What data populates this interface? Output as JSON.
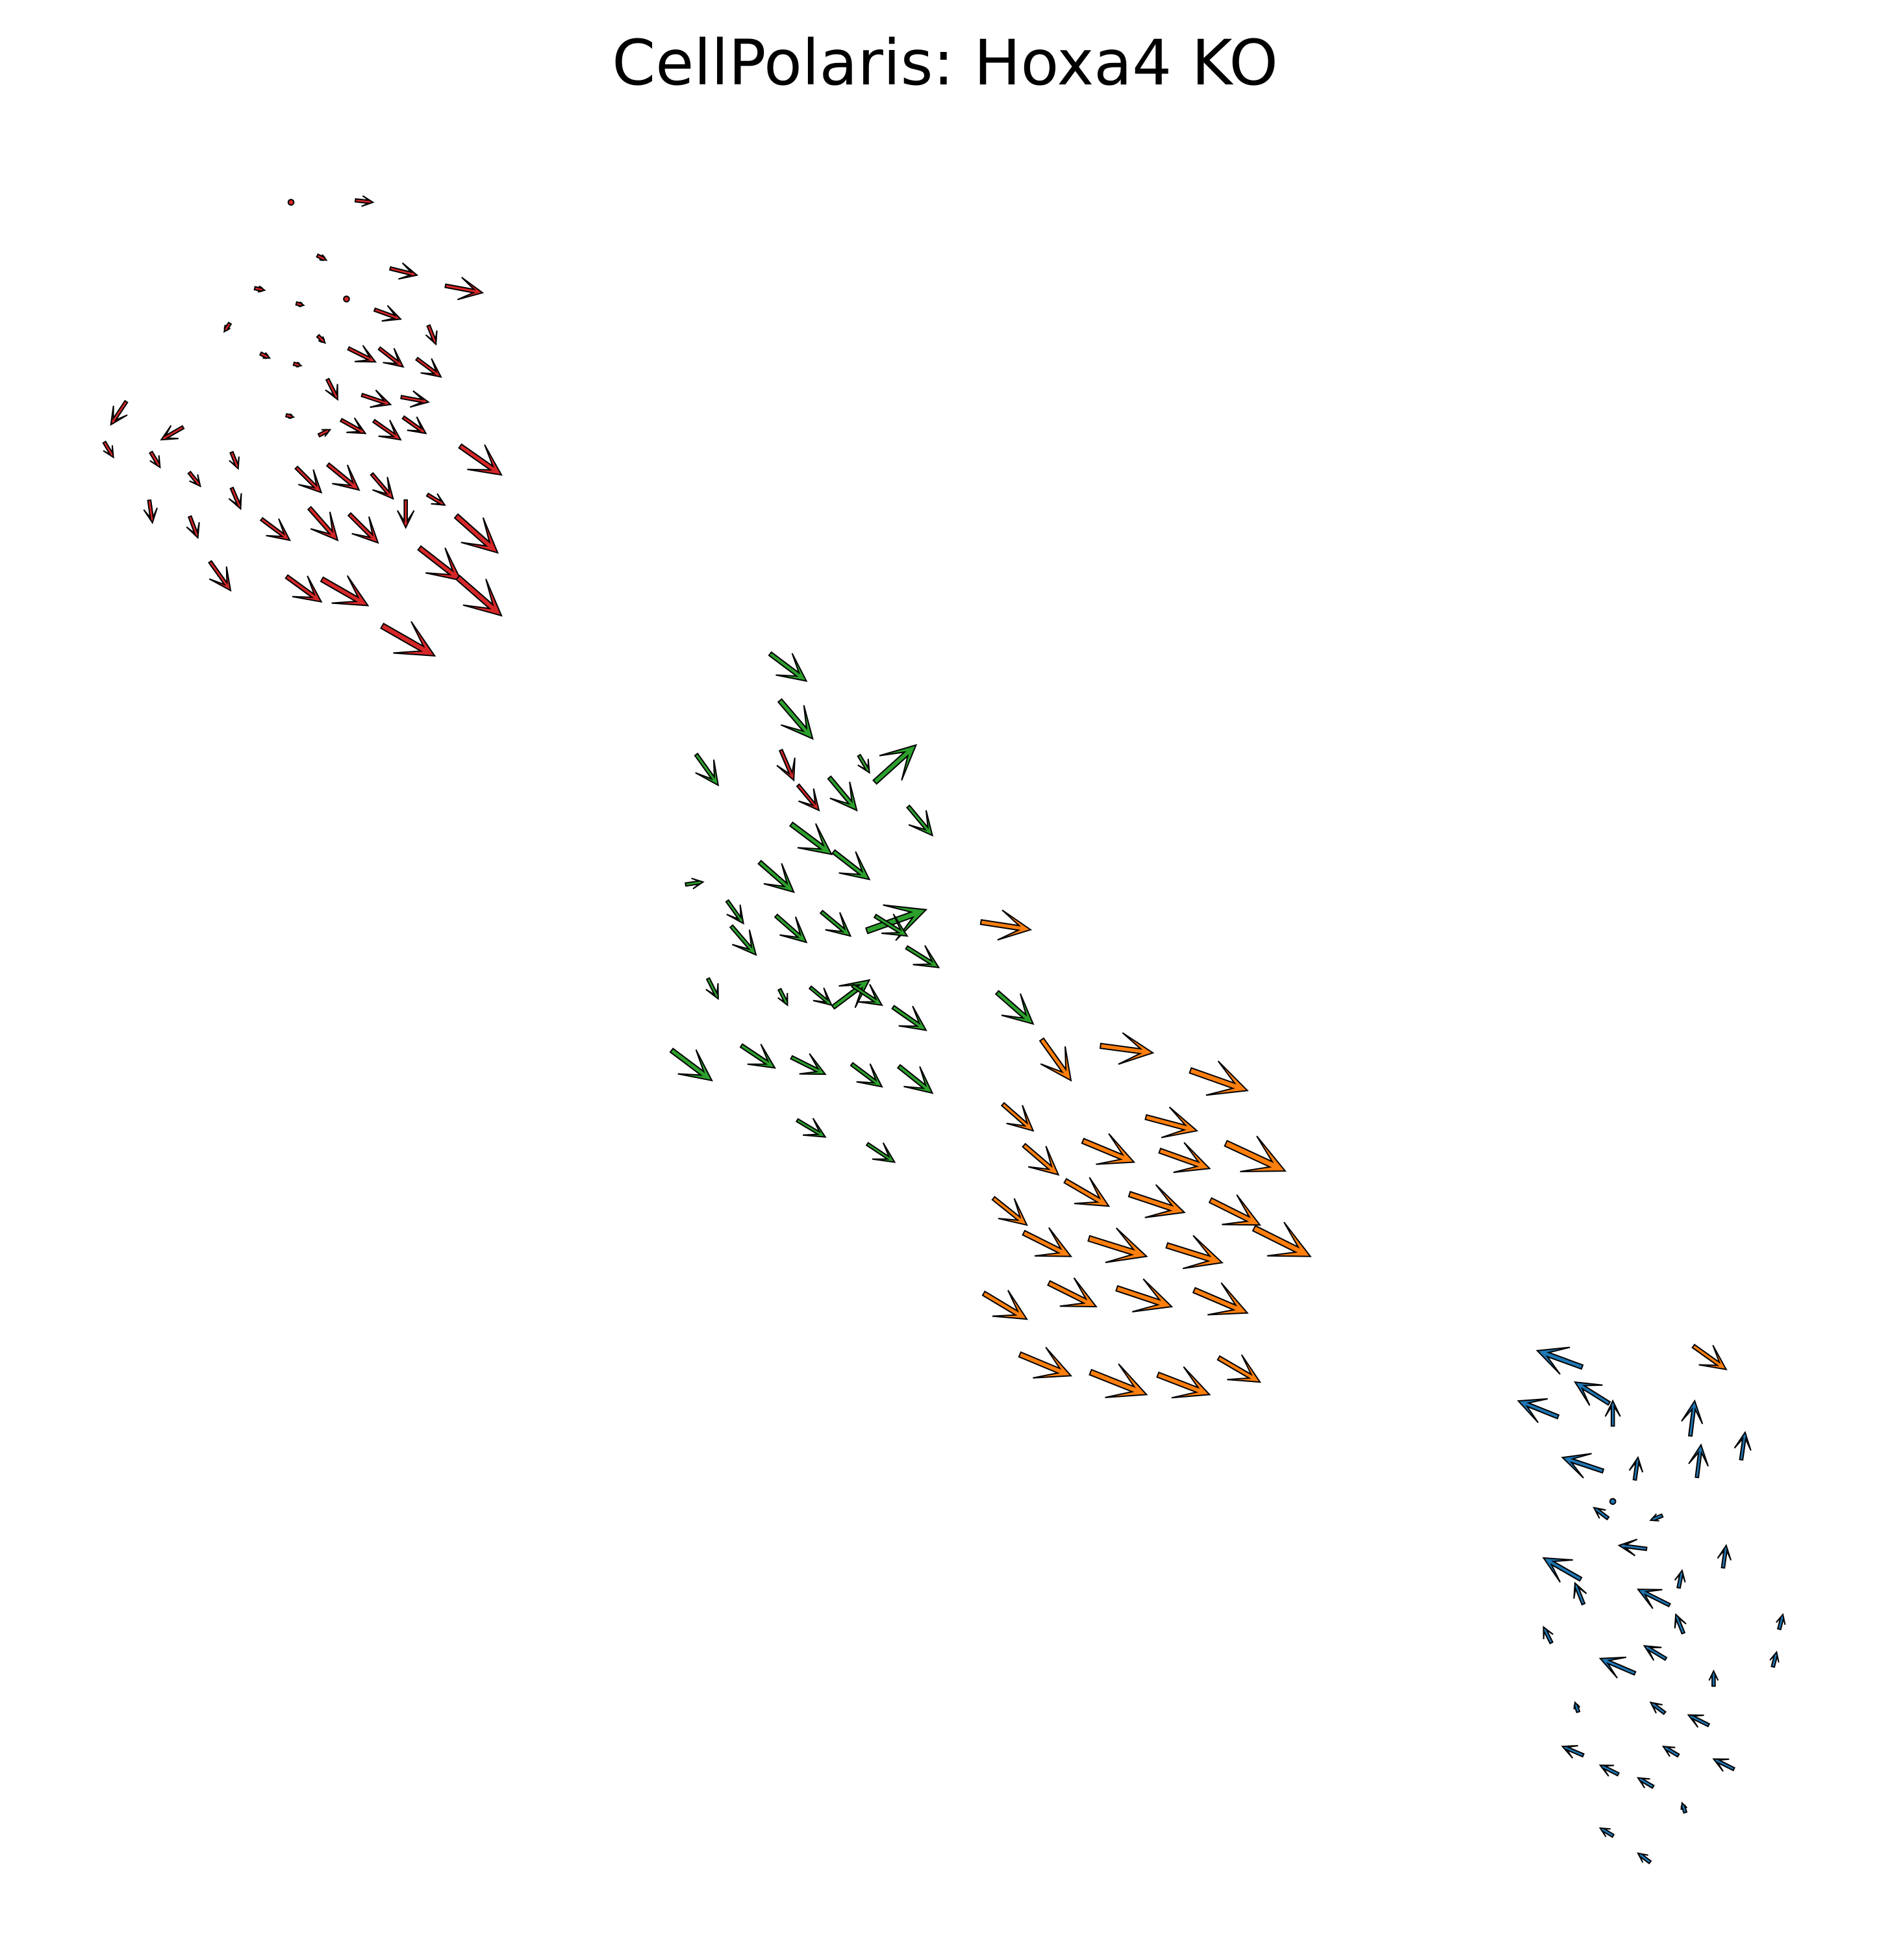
{
  "chart_data": {
    "type": "quiver",
    "title": "CellPolaris: Hoxa4 KO",
    "xlabel": "",
    "ylabel": "",
    "axes_visible": false,
    "grid": false,
    "legend": "none",
    "xlim": [
      0,
      1500
    ],
    "ylim": [
      0,
      1560
    ],
    "y_axis_direction": "down",
    "colors": {
      "red": "#d62728",
      "green": "#2ca02c",
      "orange": "#ff7f0e",
      "blue": "#1f77b4"
    },
    "series": [
      {
        "color_key": "red",
        "arrows": [
          [
            231,
            161,
            0,
            0,
            4
          ],
          [
            296,
            161,
            18,
            2,
            14
          ],
          [
            259,
            207,
            8,
            4,
            8
          ],
          [
            331,
            219,
            24,
            6,
            22
          ],
          [
            383,
            233,
            32,
            6,
            30
          ],
          [
            210,
            231,
            10,
            2,
            8
          ],
          [
            241,
            243,
            8,
            2,
            6
          ],
          [
            275,
            238,
            0,
            0,
            4
          ],
          [
            318,
            254,
            22,
            8,
            22
          ],
          [
            178,
            264,
            -4,
            6,
            8
          ],
          [
            258,
            273,
            8,
            8,
            8
          ],
          [
            346,
            274,
            4,
            10,
            16
          ],
          [
            214,
            285,
            8,
            4,
            8
          ],
          [
            239,
            291,
            8,
            2,
            6
          ],
          [
            298,
            288,
            20,
            10,
            24
          ],
          [
            320,
            292,
            18,
            14,
            24
          ],
          [
            350,
            300,
            16,
            12,
            24
          ],
          [
            268,
            318,
            6,
            12,
            18
          ],
          [
            310,
            322,
            24,
            8,
            24
          ],
          [
            340,
            320,
            22,
            4,
            22
          ],
          [
            88,
            338,
            -8,
            12,
            22
          ],
          [
            128,
            350,
            -14,
            8,
            20
          ],
          [
            233,
            332,
            8,
            2,
            6
          ],
          [
            262,
            342,
            8,
            -4,
            10
          ],
          [
            290,
            345,
            18,
            10,
            22
          ],
          [
            318,
            350,
            20,
            14,
            26
          ],
          [
            338,
            345,
            14,
            10,
            22
          ],
          [
            90,
            364,
            6,
            10,
            14
          ],
          [
            127,
            372,
            6,
            10,
            14
          ],
          [
            159,
            387,
            8,
            10,
            14
          ],
          [
            189,
            373,
            4,
            10,
            14
          ],
          [
            398,
            378,
            20,
            14,
            40
          ],
          [
            255,
            392,
            16,
            16,
            28
          ],
          [
            285,
            390,
            22,
            18,
            32
          ],
          [
            312,
            397,
            12,
            14,
            26
          ],
          [
            353,
            402,
            10,
            6,
            16
          ],
          [
            191,
            405,
            6,
            14,
            18
          ],
          [
            121,
            416,
            2,
            14,
            18
          ],
          [
            157,
            428,
            6,
            16,
            18
          ],
          [
            230,
            430,
            16,
            12,
            28
          ],
          [
            268,
            430,
            14,
            16,
            34
          ],
          [
            300,
            432,
            14,
            14,
            32
          ],
          [
            322,
            420,
            0,
            14,
            22
          ],
          [
            395,
            440,
            18,
            16,
            44
          ],
          [
            183,
            470,
            10,
            14,
            28
          ],
          [
            255,
            479,
            22,
            16,
            34
          ],
          [
            292,
            482,
            28,
            16,
            42
          ],
          [
            366,
            462,
            18,
            14,
            42
          ],
          [
            398,
            490,
            16,
            14,
            46
          ],
          [
            345,
            522,
            28,
            16,
            48
          ],
          [
            630,
            621,
            6,
            14,
            26
          ],
          [
            650,
            645,
            10,
            12,
            26
          ]
        ]
      },
      {
        "color_key": "green",
        "arrows": [
          [
            640,
            542,
            16,
            12,
            36
          ],
          [
            645,
            588,
            12,
            14,
            40
          ],
          [
            727,
            593,
            20,
            -18,
            44
          ],
          [
            570,
            625,
            10,
            14,
            30
          ],
          [
            690,
            615,
            6,
            10,
            16
          ],
          [
            680,
            645,
            10,
            12,
            34
          ],
          [
            740,
            665,
            10,
            12,
            30
          ],
          [
            558,
            702,
            14,
            -2,
            14
          ],
          [
            630,
            710,
            16,
            14,
            36
          ],
          [
            660,
            680,
            16,
            12,
            40
          ],
          [
            690,
            700,
            18,
            14,
            36
          ],
          [
            735,
            724,
            28,
            -10,
            50
          ],
          [
            590,
            735,
            10,
            14,
            22
          ],
          [
            640,
            750,
            16,
            14,
            32
          ],
          [
            675,
            745,
            12,
            10,
            30
          ],
          [
            720,
            745,
            16,
            10,
            30
          ],
          [
            600,
            760,
            12,
            14,
            30
          ],
          [
            690,
            780,
            16,
            -12,
            36
          ],
          [
            745,
            770,
            16,
            10,
            30
          ],
          [
            570,
            795,
            4,
            8,
            18
          ],
          [
            625,
            800,
            4,
            8,
            14
          ],
          [
            660,
            800,
            12,
            10,
            22
          ],
          [
            700,
            800,
            18,
            12,
            28
          ],
          [
            735,
            820,
            20,
            14,
            32
          ],
          [
            820,
            815,
            16,
            14,
            38
          ],
          [
            565,
            860,
            16,
            12,
            40
          ],
          [
            615,
            850,
            12,
            8,
            32
          ],
          [
            655,
            855,
            16,
            8,
            30
          ],
          [
            700,
            865,
            16,
            12,
            30
          ],
          [
            740,
            870,
            10,
            8,
            34
          ],
          [
            655,
            905,
            10,
            6,
            26
          ],
          [
            710,
            925,
            6,
            4,
            26
          ]
        ]
      },
      {
        "color_key": "orange",
        "arrows": [
          [
            818,
            740,
            26,
            4,
            40
          ],
          [
            915,
            838,
            30,
            4,
            42
          ],
          [
            990,
            868,
            34,
            12,
            48
          ],
          [
            850,
            860,
            10,
            14,
            40
          ],
          [
            820,
            900,
            16,
            14,
            32
          ],
          [
            950,
            900,
            30,
            8,
            42
          ],
          [
            1020,
            932,
            30,
            14,
            52
          ],
          [
            840,
            935,
            14,
            12,
            36
          ],
          [
            900,
            925,
            24,
            10,
            44
          ],
          [
            960,
            930,
            28,
            10,
            42
          ],
          [
            815,
            975,
            10,
            8,
            34
          ],
          [
            880,
            960,
            24,
            14,
            40
          ],
          [
            940,
            965,
            30,
            10,
            46
          ],
          [
            1000,
            975,
            24,
            12,
            44
          ],
          [
            1040,
            1000,
            24,
            12,
            50
          ],
          [
            850,
            1000,
            28,
            14,
            42
          ],
          [
            910,
            1000,
            32,
            10,
            48
          ],
          [
            970,
            1005,
            32,
            10,
            46
          ],
          [
            815,
            1050,
            20,
            12,
            40
          ],
          [
            870,
            1040,
            24,
            12,
            42
          ],
          [
            930,
            1040,
            30,
            10,
            46
          ],
          [
            990,
            1045,
            28,
            12,
            46
          ],
          [
            850,
            1095,
            24,
            10,
            44
          ],
          [
            910,
            1110,
            30,
            12,
            48
          ],
          [
            960,
            1110,
            26,
            10,
            44
          ],
          [
            1000,
            1100,
            24,
            14,
            38
          ],
          [
            1370,
            1090,
            14,
            10,
            32
          ]
        ]
      },
      {
        "color_key": "blue",
        "arrows": [
          [
            1220,
            1075,
            -22,
            -8,
            38
          ],
          [
            1250,
            1100,
            -16,
            -10,
            32
          ],
          [
            1205,
            1115,
            -20,
            -8,
            34
          ],
          [
            1280,
            1115,
            0,
            -10,
            20
          ],
          [
            1345,
            1115,
            2,
            -16,
            28
          ],
          [
            1240,
            1160,
            -18,
            -6,
            34
          ],
          [
            1300,
            1160,
            2,
            -14,
            18
          ],
          [
            1350,
            1150,
            2,
            -16,
            26
          ],
          [
            1385,
            1140,
            2,
            -14,
            22
          ],
          [
            1265,
            1200,
            -8,
            -6,
            14
          ],
          [
            1310,
            1210,
            -10,
            4,
            10
          ],
          [
            1225,
            1240,
            -14,
            -8,
            34
          ],
          [
            1285,
            1230,
            -16,
            -2,
            22
          ],
          [
            1370,
            1230,
            2,
            -14,
            18
          ],
          [
            1250,
            1260,
            -4,
            -10,
            18
          ],
          [
            1300,
            1265,
            -12,
            -6,
            28
          ],
          [
            1335,
            1250,
            2,
            -10,
            14
          ],
          [
            1330,
            1285,
            -4,
            -10,
            16
          ],
          [
            1225,
            1295,
            -4,
            -8,
            14
          ],
          [
            1270,
            1320,
            -14,
            -6,
            30
          ],
          [
            1305,
            1310,
            -10,
            -6,
            20
          ],
          [
            1360,
            1330,
            0,
            -8,
            12
          ],
          [
            1415,
            1285,
            2,
            -8,
            12
          ],
          [
            1410,
            1315,
            2,
            -8,
            12
          ],
          [
            1340,
            1365,
            -12,
            -6,
            18
          ],
          [
            1310,
            1355,
            -8,
            -6,
            14
          ],
          [
            1250,
            1355,
            -2,
            -6,
            8
          ],
          [
            1240,
            1390,
            -14,
            -6,
            18
          ],
          [
            1320,
            1390,
            -10,
            -6,
            14
          ],
          [
            1360,
            1400,
            -12,
            -6,
            18
          ],
          [
            1270,
            1405,
            -12,
            -6,
            16
          ],
          [
            1300,
            1415,
            -10,
            -6,
            14
          ],
          [
            1335,
            1435,
            -2,
            -6,
            8
          ],
          [
            1270,
            1455,
            -10,
            -6,
            12
          ],
          [
            1300,
            1475,
            -8,
            -6,
            12
          ],
          [
            1280,
            1195,
            0,
            0,
            4
          ]
        ]
      }
    ]
  }
}
